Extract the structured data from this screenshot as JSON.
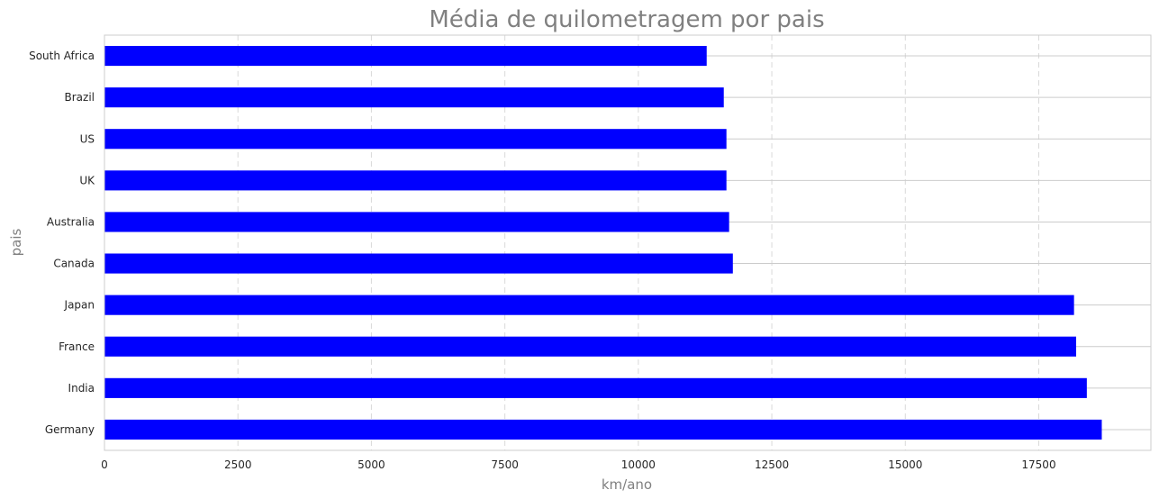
{
  "chart_data": {
    "type": "bar",
    "orientation": "horizontal",
    "title": "Média de quilometragem por pais",
    "xlabel": "km/ano",
    "ylabel": "pais",
    "xlim": [
      0,
      19600
    ],
    "xticks": [
      0,
      2500,
      5000,
      7500,
      10000,
      12500,
      15000,
      17500
    ],
    "bar_color": "#0000ff",
    "categories": [
      "South Africa",
      "Brazil",
      "US",
      "UK",
      "Australia",
      "Canada",
      "Japan",
      "France",
      "India",
      "Germany"
    ],
    "values": [
      11280,
      11600,
      11650,
      11650,
      11700,
      11770,
      18160,
      18200,
      18400,
      18680
    ],
    "grid": true
  }
}
